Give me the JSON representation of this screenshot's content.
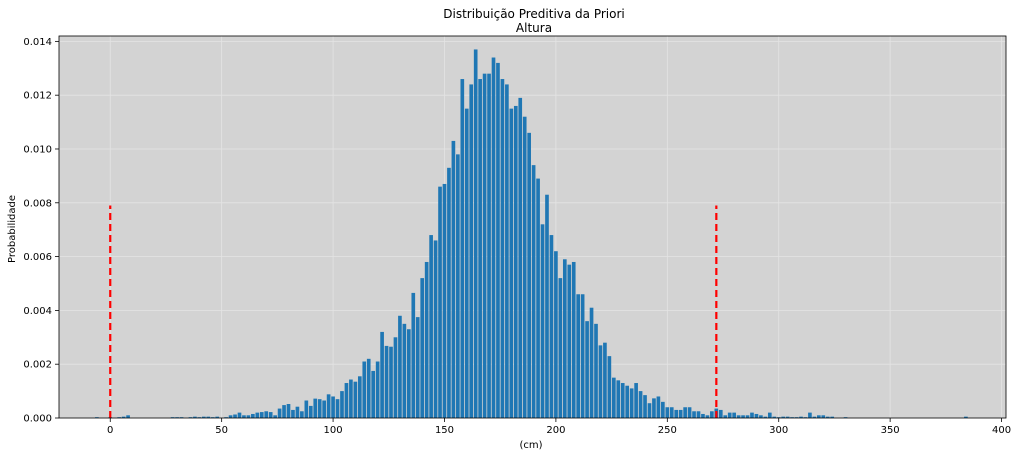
{
  "chart_data": {
    "type": "bar",
    "title": "Distribuição Preditiva da Priori",
    "subtitle": "Altura",
    "xlabel": "(cm)",
    "ylabel": "Probabilidade",
    "xlim": [
      -23,
      402
    ],
    "ylim": [
      0,
      0.0142
    ],
    "xticks": [
      0,
      50,
      100,
      150,
      200,
      250,
      300,
      350,
      400
    ],
    "xtick_labels": [
      "0",
      "50",
      "100",
      "150",
      "200",
      "250",
      "300",
      "350",
      "400"
    ],
    "yticks": [
      0,
      0.002,
      0.004,
      0.006,
      0.008,
      0.01,
      0.012,
      0.014
    ],
    "ytick_labels": [
      "0.000",
      "0.002",
      "0.004",
      "0.006",
      "0.008",
      "0.010",
      "0.012",
      "0.014"
    ],
    "grid": true,
    "background": "#d3d3d3",
    "bar_color": "#1f77b4",
    "bin_width": 2,
    "x": [
      -6,
      0,
      4,
      6,
      8,
      28,
      30,
      32,
      36,
      38,
      40,
      42,
      44,
      46,
      48,
      52,
      54,
      56,
      58,
      60,
      62,
      64,
      66,
      68,
      70,
      72,
      74,
      76,
      78,
      80,
      82,
      84,
      86,
      88,
      90,
      92,
      94,
      96,
      98,
      100,
      102,
      104,
      106,
      108,
      110,
      112,
      114,
      116,
      118,
      120,
      122,
      124,
      126,
      128,
      130,
      132,
      134,
      136,
      138,
      140,
      142,
      144,
      146,
      148,
      150,
      152,
      154,
      156,
      158,
      160,
      162,
      164,
      166,
      168,
      170,
      172,
      174,
      176,
      178,
      180,
      182,
      184,
      186,
      188,
      190,
      192,
      194,
      196,
      198,
      200,
      202,
      204,
      206,
      208,
      210,
      212,
      214,
      216,
      218,
      220,
      222,
      224,
      226,
      228,
      230,
      232,
      234,
      236,
      238,
      240,
      242,
      244,
      246,
      248,
      250,
      252,
      254,
      256,
      258,
      260,
      262,
      264,
      266,
      268,
      270,
      272,
      274,
      276,
      278,
      280,
      282,
      284,
      286,
      288,
      290,
      292,
      294,
      296,
      298,
      300,
      302,
      304,
      306,
      308,
      310,
      312,
      314,
      316,
      318,
      320,
      322,
      324,
      330,
      384
    ],
    "values": [
      3e-05,
      3e-05,
      3e-05,
      5e-05,
      0.0001,
      3e-05,
      3e-05,
      3e-05,
      3e-05,
      5e-05,
      3e-05,
      5e-05,
      5e-05,
      3e-05,
      5e-05,
      3e-05,
      0.0001,
      0.00013,
      0.0002,
      0.0001,
      0.0001,
      0.00015,
      0.0002,
      0.00022,
      0.00025,
      0.00022,
      0.0001,
      0.00035,
      0.00048,
      0.00052,
      0.0003,
      0.00042,
      0.00025,
      0.00065,
      0.00045,
      0.00072,
      0.0007,
      0.00065,
      0.00088,
      0.0008,
      0.0007,
      0.001,
      0.0013,
      0.00143,
      0.00135,
      0.00155,
      0.0021,
      0.0022,
      0.00175,
      0.0021,
      0.0032,
      0.00268,
      0.00265,
      0.003,
      0.0038,
      0.0035,
      0.0033,
      0.00465,
      0.00375,
      0.0052,
      0.0058,
      0.0068,
      0.0066,
      0.0086,
      0.0087,
      0.0093,
      0.0103,
      0.0098,
      0.0126,
      0.0115,
      0.0124,
      0.0137,
      0.0126,
      0.0128,
      0.0128,
      0.0134,
      0.0132,
      0.0126,
      0.0124,
      0.0115,
      0.0116,
      0.0119,
      0.0112,
      0.0106,
      0.0094,
      0.0089,
      0.0072,
      0.0083,
      0.0068,
      0.0062,
      0.0052,
      0.0059,
      0.0057,
      0.0058,
      0.0046,
      0.0046,
      0.0036,
      0.0041,
      0.0035,
      0.0027,
      0.0028,
      0.0023,
      0.0015,
      0.0014,
      0.0013,
      0.0012,
      0.0011,
      0.0013,
      0.001,
      0.00085,
      0.00055,
      0.00073,
      0.0008,
      0.0006,
      0.0004,
      0.0004,
      0.0003,
      0.0003,
      0.0004,
      0.0004,
      0.00025,
      0.00025,
      0.00015,
      0.0001,
      0.00025,
      0.00035,
      0.0003,
      0.0001,
      0.0002,
      0.0002,
      0.0001,
      0.0001,
      0.0001,
      0.0002,
      0.00015,
      0.0001,
      5e-05,
      0.0002,
      5e-05,
      3e-05,
      5e-05,
      5e-05,
      3e-05,
      3e-05,
      5e-05,
      3e-05,
      0.0002,
      5e-05,
      0.0001,
      0.0001,
      5e-05,
      5e-05,
      3e-05,
      5e-05
    ],
    "reference_lines": [
      {
        "x": 0,
        "y_range": [
          0,
          0.0079
        ],
        "color": "#ff0000",
        "style": "dashed"
      },
      {
        "x": 272,
        "y_range": [
          0,
          0.0079
        ],
        "color": "#ff0000",
        "style": "dashed"
      }
    ]
  }
}
